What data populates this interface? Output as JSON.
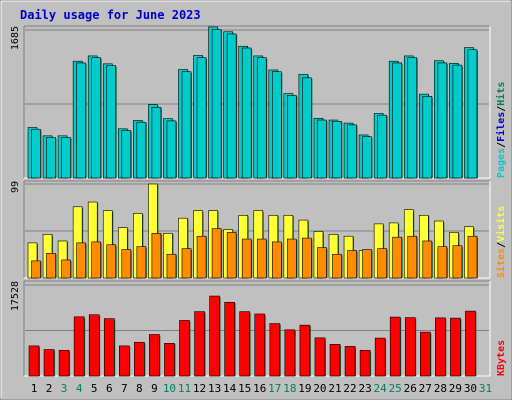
{
  "chart_data": {
    "type": "bar",
    "title": "Daily usage for June 2023",
    "colors": {
      "background": "#C0C0C0",
      "title": "#0000CC",
      "hits": "#00CCCC",
      "files": "#0000CC",
      "pages": "#00CCCC",
      "visits": "#FFFF33",
      "sites": "#FF8C00",
      "kbytes": "#FF0000",
      "weekend_day": "#00805C",
      "weekday_day": "#000000"
    },
    "days": [
      "1",
      "2",
      "3",
      "4",
      "5",
      "6",
      "7",
      "8",
      "9",
      "10",
      "11",
      "12",
      "13",
      "14",
      "15",
      "16",
      "17",
      "18",
      "19",
      "20",
      "21",
      "22",
      "23",
      "24",
      "25",
      "26",
      "27",
      "28",
      "29",
      "30",
      "31"
    ],
    "weekend_days": [
      "3",
      "4",
      "10",
      "11",
      "17",
      "18",
      "24",
      "25",
      "31"
    ],
    "panels": [
      {
        "id": "hits_files_pages",
        "max_label": "1685",
        "labels": [
          "Pages",
          "/",
          "Files",
          "/",
          "Hits"
        ],
        "series": [
          {
            "name": "Hits",
            "values": [
              575,
              480,
              480,
              1330,
              1390,
              1300,
              560,
              655,
              835,
              675,
              1235,
              1395,
              1720,
              1665,
              1500,
              1390,
              1230,
              960,
              1180,
              680,
              660,
              625,
              490,
              735,
              1330,
              1390,
              955,
              1335,
              1305,
              1485,
              0
            ]
          },
          {
            "name": "Files",
            "values": [
              555,
              460,
              460,
              1310,
              1370,
              1280,
              540,
              635,
              805,
              650,
              1210,
              1370,
              1690,
              1640,
              1480,
              1370,
              1210,
              940,
              1140,
              660,
              645,
              605,
              470,
              715,
              1310,
              1370,
              930,
              1310,
              1285,
              1460,
              0
            ]
          }
        ]
      },
      {
        "id": "visits_sites",
        "max_label": "99",
        "labels": [
          "Sites",
          "/",
          "Visits"
        ],
        "series": [
          {
            "name": "Visits",
            "values": [
              37,
              46,
              39,
              75,
              80,
              71,
              53,
              68,
              99,
              47,
              63,
              71,
              71,
              51,
              66,
              71,
              66,
              66,
              61,
              49,
              46,
              44,
              29,
              57,
              58,
              72,
              66,
              60,
              48,
              54,
              0
            ]
          },
          {
            "name": "Sites",
            "values": [
              18,
              26,
              19,
              37,
              38,
              35,
              30,
              33,
              47,
              25,
              31,
              44,
              52,
              48,
              41,
              41,
              38,
              41,
              42,
              32,
              25,
              29,
              30,
              31,
              43,
              44,
              39,
              33,
              34,
              44,
              0
            ]
          }
        ]
      },
      {
        "id": "kbytes",
        "max_label": "17528",
        "labels": [
          "KBytes"
        ],
        "series": [
          {
            "name": "KBytes",
            "values": [
              5800,
              5100,
              4950,
              11400,
              11800,
              11050,
              5800,
              6500,
              8000,
              6300,
              10700,
              12400,
              15400,
              14200,
              12400,
              11950,
              10100,
              8900,
              9800,
              7350,
              6100,
              5700,
              4950,
              7300,
              11350,
              11250,
              8450,
              11200,
              11150,
              12500,
              0
            ]
          }
        ]
      }
    ]
  }
}
